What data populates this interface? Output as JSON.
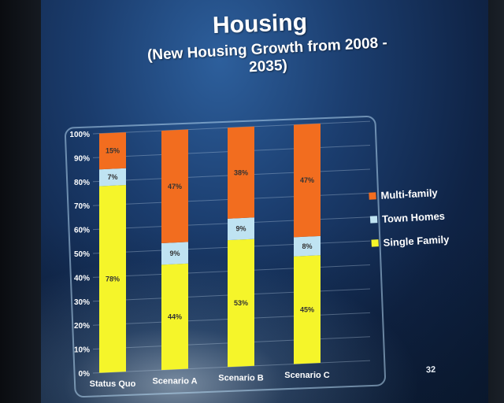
{
  "slide": {
    "title": "Housing",
    "subtitle": "(New Housing Growth from 2008 - 2035)",
    "page_number": "32"
  },
  "legend": [
    {
      "label": "Multi-family",
      "color": "#f26d1f"
    },
    {
      "label": "Town Homes",
      "color": "#bfe3f2"
    },
    {
      "label": "Single Family",
      "color": "#f5f52a"
    }
  ],
  "chart_data": {
    "type": "bar",
    "stacked": true,
    "title": "Housing",
    "subtitle": "(New Housing Growth from 2008 - 2035)",
    "categories": [
      "Status Quo",
      "Scenario A",
      "Scenario B",
      "Scenario C"
    ],
    "series": [
      {
        "name": "Single Family",
        "color": "#f5f52a",
        "values": [
          78,
          44,
          53,
          45
        ],
        "labels": [
          "78%",
          "44%",
          "53%",
          "45%"
        ]
      },
      {
        "name": "Town Homes",
        "color": "#bfe3f2",
        "values": [
          7,
          9,
          9,
          8
        ],
        "labels": [
          "7%",
          "9%",
          "9%",
          "8%"
        ]
      },
      {
        "name": "Multi-family",
        "color": "#f26d1f",
        "values": [
          15,
          47,
          38,
          47
        ],
        "labels": [
          "15%",
          "47%",
          "38%",
          "47%"
        ]
      }
    ],
    "yticks": [
      "0%",
      "10%",
      "20%",
      "30%",
      "40%",
      "50%",
      "60%",
      "70%",
      "80%",
      "90%",
      "100%"
    ],
    "ylim": [
      0,
      100
    ],
    "grid": true,
    "legend_position": "right"
  }
}
